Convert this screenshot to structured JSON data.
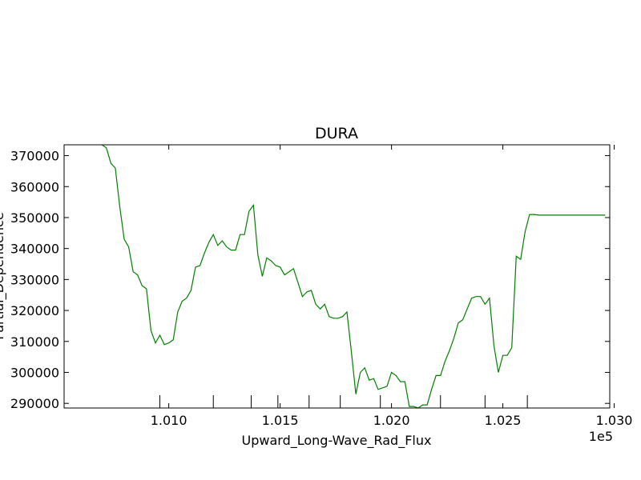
{
  "chart_data": {
    "type": "line",
    "title": "DURA",
    "xlabel": "Upward_Long-Wave_Rad_Flux",
    "ylabel": "Partial_Dependence",
    "x_offset_label": "1e5",
    "xlim": [
      1.0053,
      1.0298
    ],
    "ylim": [
      288500,
      373500
    ],
    "x_ticks": [
      1.01,
      1.015,
      1.02,
      1.025,
      1.03
    ],
    "x_tick_labels": [
      "1.010",
      "1.015",
      "1.020",
      "1.025",
      "1.030"
    ],
    "y_ticks": [
      290000,
      300000,
      310000,
      320000,
      330000,
      340000,
      350000,
      360000,
      370000
    ],
    "y_tick_labels": [
      "290000",
      "300000",
      "310000",
      "320000",
      "330000",
      "340000",
      "350000",
      "360000",
      "370000"
    ],
    "rug_x": [
      1.0096,
      1.012,
      1.0137,
      1.0149,
      1.0163,
      1.0177,
      1.0195,
      1.0222,
      1.0242,
      1.0261
    ],
    "grid": false,
    "line_color": "#008000",
    "series": [
      {
        "x": [
          1.007,
          1.0072,
          1.0074,
          1.0076,
          1.0078,
          1.008,
          1.0082,
          1.0084,
          1.0086,
          1.0088,
          1.009,
          1.0092,
          1.0094,
          1.0096,
          1.0098,
          1.01,
          1.0102,
          1.0104,
          1.0106,
          1.0108,
          1.011,
          1.0112,
          1.0114,
          1.0116,
          1.0118,
          1.012,
          1.0122,
          1.0124,
          1.0126,
          1.0128,
          1.013,
          1.0132,
          1.0134,
          1.0136,
          1.0138,
          1.014,
          1.0142,
          1.0144,
          1.0146,
          1.0148,
          1.015,
          1.0152,
          1.0154,
          1.0156,
          1.0158,
          1.016,
          1.0162,
          1.0164,
          1.0166,
          1.0168,
          1.017,
          1.0172,
          1.0174,
          1.0176,
          1.0178,
          1.018,
          1.0182,
          1.0184,
          1.0186,
          1.0188,
          1.019,
          1.0192,
          1.0194,
          1.0196,
          1.0198,
          1.02,
          1.0202,
          1.0204,
          1.0206,
          1.0208,
          1.021,
          1.0212,
          1.0214,
          1.0216,
          1.0218,
          1.022,
          1.0222,
          1.0224,
          1.0226,
          1.0228,
          1.023,
          1.0232,
          1.0234,
          1.0236,
          1.0238,
          1.024,
          1.0242,
          1.0244,
          1.0246,
          1.0248,
          1.025,
          1.0252,
          1.0254,
          1.0256,
          1.0258,
          1.026,
          1.0262,
          1.0264,
          1.0266,
          1.0268,
          1.027,
          1.0272,
          1.0274,
          1.0276,
          1.0278,
          1.028,
          1.0282,
          1.0284,
          1.0286,
          1.0288,
          1.029,
          1.0292,
          1.0294,
          1.0296
        ],
        "values": [
          373500,
          372500,
          367500,
          366000,
          353500,
          343000,
          340500,
          332500,
          331500,
          328000,
          327000,
          313500,
          309500,
          312000,
          309000,
          309500,
          310500,
          319500,
          323000,
          324000,
          326500,
          334000,
          334500,
          338500,
          342000,
          344500,
          341000,
          342500,
          340500,
          339500,
          339500,
          344500,
          344500,
          352000,
          354000,
          338000,
          331000,
          337000,
          336000,
          334500,
          334000,
          331500,
          332500,
          333500,
          329000,
          324500,
          326000,
          326500,
          322000,
          320500,
          322000,
          318000,
          317500,
          317500,
          318000,
          319500,
          306500,
          293000,
          300000,
          301500,
          297500,
          298000,
          294500,
          295000,
          295500,
          300000,
          299000,
          297000,
          297000,
          289000,
          289000,
          288500,
          289500,
          289500,
          294500,
          299000,
          299000,
          303500,
          307000,
          311000,
          316000,
          317000,
          320500,
          324000,
          324500,
          324500,
          322000,
          324000,
          308500,
          300000,
          305500,
          305500,
          308000,
          337500,
          336500,
          345500,
          351000,
          351000,
          350800,
          350800,
          350800,
          350800,
          350800,
          350800,
          350800,
          350800,
          350800,
          350800,
          350800,
          350800,
          350800,
          350800,
          350800,
          350800
        ]
      }
    ]
  }
}
